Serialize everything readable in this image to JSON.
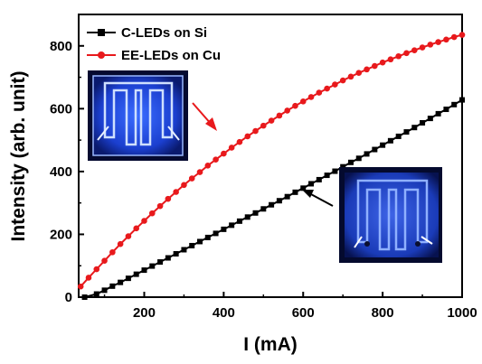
{
  "chart_data": {
    "type": "line",
    "xlabel": "I (mA)",
    "ylabel": "Intensity (arb. unit)",
    "xlim": [
      35,
      1000
    ],
    "ylim": [
      0,
      900
    ],
    "xticks": [
      200,
      400,
      600,
      800,
      1000
    ],
    "yticks": [
      0,
      200,
      400,
      600,
      800
    ],
    "legend_position": "top-left",
    "grid": false,
    "series": [
      {
        "name": "C-LEDs on Si",
        "color": "#000000",
        "marker": "square",
        "x": [
          50,
          80,
          100,
          120,
          140,
          160,
          180,
          200,
          220,
          240,
          260,
          280,
          300,
          320,
          340,
          360,
          380,
          400,
          420,
          440,
          460,
          480,
          500,
          520,
          540,
          560,
          580,
          600,
          620,
          640,
          660,
          680,
          700,
          720,
          740,
          760,
          780,
          800,
          820,
          840,
          860,
          880,
          900,
          920,
          940,
          960,
          980,
          1000
        ],
        "y": [
          0,
          10,
          22,
          35,
          47,
          60,
          73,
          86,
          99,
          112,
          125,
          138,
          151,
          164,
          177,
          190,
          203,
          216,
          229,
          242,
          255,
          268,
          281,
          294,
          307,
          320,
          334,
          347,
          361,
          374,
          388,
          401,
          415,
          429,
          442,
          456,
          470,
          484,
          498,
          512,
          526,
          540,
          555,
          569,
          584,
          598,
          613,
          628
        ]
      },
      {
        "name": "EE-LEDs on Cu",
        "color": "#e8191c",
        "marker": "circle",
        "x": [
          40,
          60,
          80,
          100,
          120,
          140,
          160,
          180,
          200,
          220,
          240,
          260,
          280,
          300,
          320,
          340,
          360,
          380,
          400,
          420,
          440,
          460,
          480,
          500,
          520,
          540,
          560,
          580,
          600,
          620,
          640,
          660,
          680,
          700,
          720,
          740,
          760,
          780,
          800,
          820,
          840,
          860,
          880,
          900,
          920,
          940,
          960,
          980,
          1000
        ],
        "y": [
          34,
          62,
          89,
          116,
          143,
          169,
          194,
          219,
          243,
          267,
          290,
          313,
          335,
          357,
          378,
          398,
          419,
          438,
          457,
          476,
          494,
          512,
          529,
          546,
          562,
          578,
          594,
          609,
          623,
          637,
          651,
          664,
          677,
          690,
          702,
          714,
          725,
          736,
          747,
          757,
          767,
          777,
          786,
          795,
          804,
          812,
          820,
          828,
          835
        ]
      }
    ],
    "insets": [
      {
        "name": "ee-led-photo",
        "label_for": "EE-LEDs on Cu",
        "arrow_points_to": {
          "x": 390,
          "y": 500
        }
      },
      {
        "name": "c-led-photo",
        "label_for": "C-LEDs on Si",
        "arrow_points_to": {
          "x": 580,
          "y": 350
        }
      }
    ]
  }
}
